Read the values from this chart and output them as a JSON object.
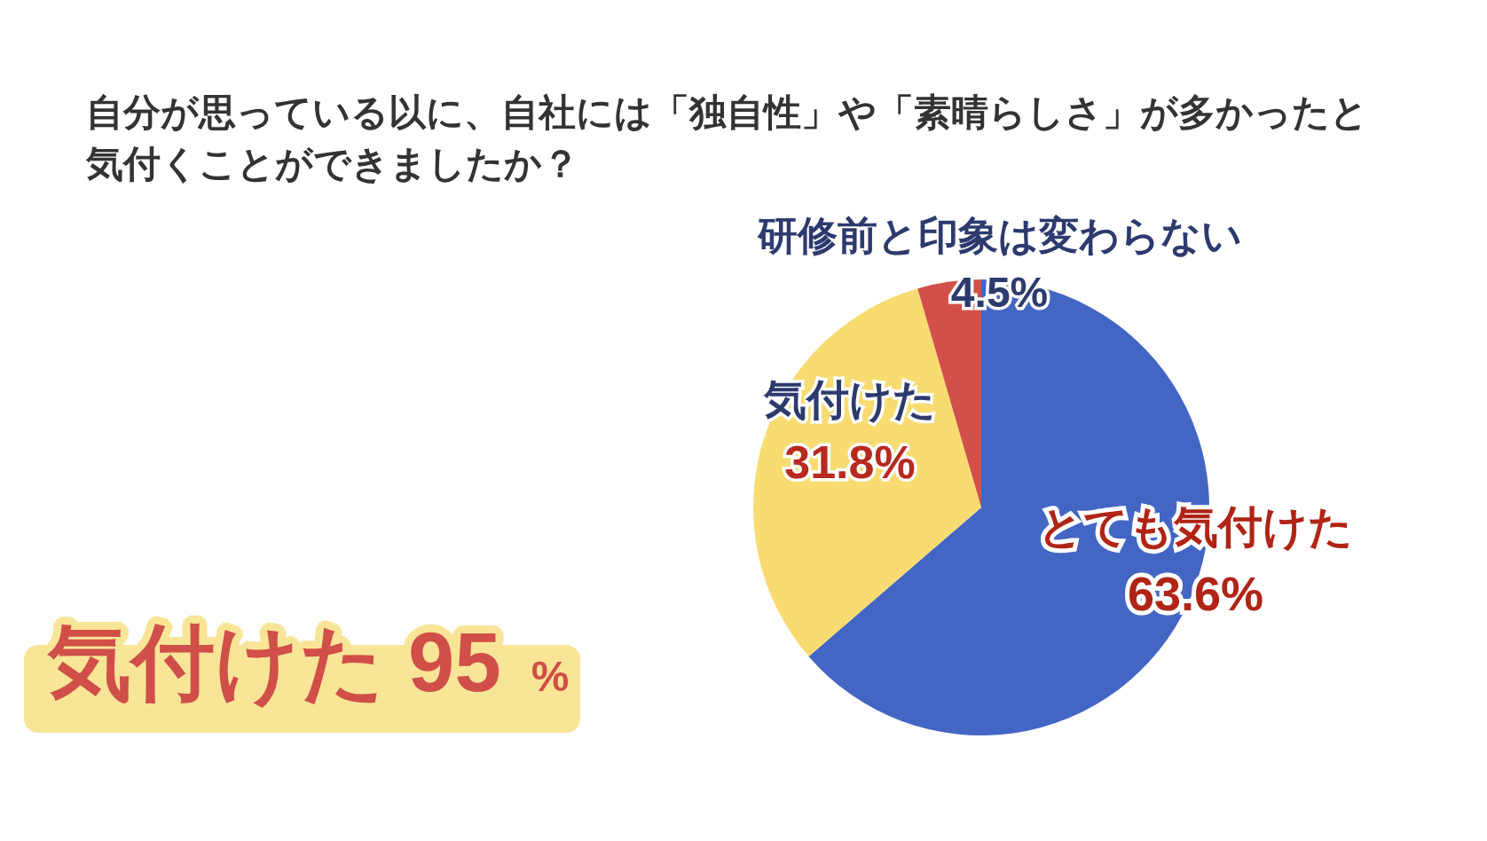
{
  "chart_data": {
    "type": "pie",
    "title": "自分が思っている以に、自社には「独自性」や「素晴らしさ」が多かったと気付くことができましたか？",
    "categories": [
      "とても気付けた",
      "気付けた",
      "研修前と印象は変わらない"
    ],
    "values": [
      63.6,
      31.8,
      4.5
    ],
    "colors": [
      "#4366c5",
      "#f8dc72",
      "#d3504a"
    ],
    "value_labels": [
      "63.6%",
      "31.8%",
      "4.5%"
    ],
    "annotations": [
      "気付けた 95 %"
    ]
  }
}
